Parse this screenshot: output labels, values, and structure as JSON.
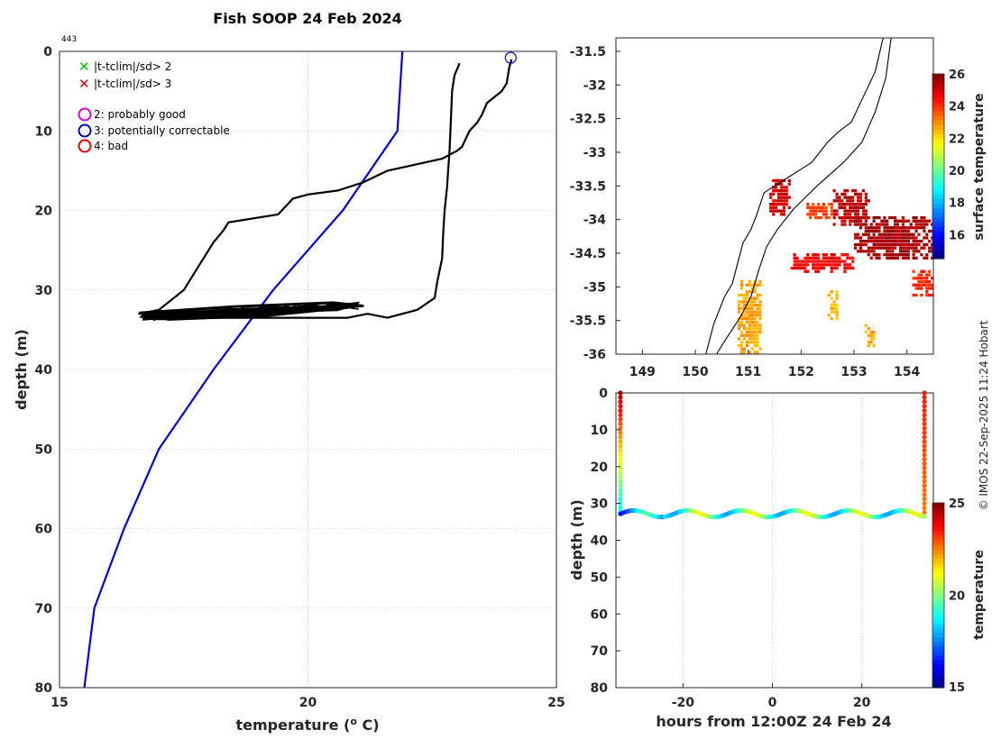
{
  "title": "Fish SOOP 24 Feb 2024",
  "profile_id": "443",
  "credit": "© IMOS 22-Sep-2025 11:24 Hobart",
  "legend": {
    "green_x": "|t-tclim|/sd> 2",
    "red_x": "|t-tclim|/sd> 3",
    "magenta_o": "2: probably good",
    "blue_o": "3: potentially correctable",
    "red_o": "4: bad"
  },
  "colors": {
    "profile": "#000000",
    "climatology": "#0000dd",
    "grid": "#b0b0b0",
    "green": "#00cc00",
    "red": "#ee0000",
    "magenta": "#dd00dd",
    "blue": "#0000cc"
  },
  "chart_data": [
    {
      "type": "line",
      "name": "profile",
      "title": "Fish SOOP 24 Feb 2024",
      "xlabel": "temperature (° C)",
      "ylabel": "depth (m)",
      "xlim": [
        15,
        25
      ],
      "ylim": [
        0,
        80
      ],
      "y_inverted": true,
      "xticks": [
        15,
        20,
        25
      ],
      "yticks": [
        0,
        10,
        20,
        30,
        40,
        50,
        60,
        70,
        80
      ],
      "grid": true,
      "series": [
        {
          "name": "climatology",
          "color": "#0000dd",
          "points": [
            [
              21.9,
              0
            ],
            [
              21.8,
              10
            ],
            [
              20.7,
              20
            ],
            [
              19.3,
              30
            ],
            [
              18.1,
              40
            ],
            [
              17.0,
              50
            ],
            [
              16.3,
              60
            ],
            [
              15.7,
              70
            ],
            [
              15.5,
              80
            ]
          ]
        },
        {
          "name": "profile",
          "color": "#000000",
          "points": [
            [
              23.05,
              1.5
            ],
            [
              22.95,
              3
            ],
            [
              22.9,
              5
            ],
            [
              22.88,
              8
            ],
            [
              22.85,
              12.5
            ],
            [
              22.82,
              15
            ],
            [
              22.8,
              17
            ],
            [
              22.75,
              20
            ],
            [
              22.72,
              23
            ],
            [
              22.7,
              26
            ],
            [
              22.6,
              29
            ],
            [
              22.55,
              31
            ],
            [
              22.2,
              32.5
            ],
            [
              21.6,
              33.5
            ],
            [
              21.2,
              33
            ],
            [
              20.8,
              33.5
            ],
            [
              17.5,
              33.5
            ],
            [
              16.6,
              33
            ],
            [
              17.0,
              32.5
            ],
            [
              17.5,
              30
            ],
            [
              17.7,
              28
            ],
            [
              17.85,
              26.5
            ],
            [
              18.1,
              24
            ],
            [
              18.3,
              22.5
            ],
            [
              18.4,
              21.5
            ],
            [
              18.9,
              21
            ],
            [
              19.4,
              20.5
            ],
            [
              19.7,
              18.5
            ],
            [
              20.0,
              18
            ],
            [
              20.6,
              17.5
            ],
            [
              21.1,
              16.5
            ],
            [
              21.6,
              15
            ],
            [
              22.7,
              13.5
            ],
            [
              23.0,
              12.5
            ],
            [
              23.1,
              12
            ],
            [
              23.25,
              10
            ],
            [
              23.4,
              9
            ],
            [
              23.5,
              8
            ],
            [
              23.6,
              6.5
            ],
            [
              23.9,
              5
            ],
            [
              24.0,
              4
            ],
            [
              24.05,
              2
            ],
            [
              24.1,
              1
            ]
          ]
        },
        {
          "name": "profile-loops",
          "color": "#000000",
          "points": [
            [
              16.6,
              32.9
            ],
            [
              18.5,
              32.1
            ],
            [
              20.5,
              31.6
            ],
            [
              21.1,
              32.0
            ],
            [
              19.5,
              32.9
            ],
            [
              17.5,
              33.6
            ],
            [
              16.8,
              33.1
            ],
            [
              18.8,
              32.4
            ],
            [
              20.8,
              32.2
            ],
            [
              19.2,
              33.2
            ],
            [
              17.2,
              33.7
            ],
            [
              16.7,
              33.2
            ],
            [
              18.6,
              32.8
            ],
            [
              20.6,
              32.5
            ]
          ]
        }
      ],
      "flags": [
        {
          "flag": "3: potentially correctable",
          "x": 24.08,
          "y": 0.8
        }
      ]
    },
    {
      "type": "heatmap",
      "name": "map",
      "xlim": [
        148.5,
        154.5
      ],
      "ylim": [
        -36,
        -31.3
      ],
      "xticks": [
        149,
        150,
        151,
        152,
        153,
        154
      ],
      "yticks": [
        -31.5,
        -32,
        -32.5,
        -33,
        -33.5,
        -34,
        -34.5,
        -35,
        -35.5,
        -36
      ],
      "colorbar": {
        "label": "surface temperature",
        "range": [
          14.5,
          26
        ],
        "ticks": [
          16,
          18,
          20,
          22,
          24,
          26
        ]
      },
      "coastline": [
        [
          153.55,
          -31.3
        ],
        [
          153.4,
          -31.8
        ],
        [
          153.1,
          -32.3
        ],
        [
          152.95,
          -32.55
        ],
        [
          152.7,
          -32.7
        ],
        [
          152.5,
          -32.85
        ],
        [
          152.2,
          -33.15
        ],
        [
          151.8,
          -33.35
        ],
        [
          151.6,
          -33.45
        ],
        [
          151.3,
          -33.6
        ],
        [
          151.15,
          -33.95
        ],
        [
          151.05,
          -34.15
        ],
        [
          150.9,
          -34.35
        ],
        [
          150.8,
          -34.65
        ],
        [
          150.7,
          -34.95
        ],
        [
          150.55,
          -35.15
        ],
        [
          150.35,
          -35.55
        ],
        [
          150.2,
          -36.0
        ]
      ],
      "isobath": [
        [
          153.7,
          -31.3
        ],
        [
          153.6,
          -31.9
        ],
        [
          153.4,
          -32.4
        ],
        [
          153.15,
          -32.85
        ],
        [
          152.8,
          -33.15
        ],
        [
          152.3,
          -33.5
        ],
        [
          151.85,
          -33.85
        ],
        [
          151.55,
          -34.15
        ],
        [
          151.35,
          -34.4
        ],
        [
          151.2,
          -34.75
        ],
        [
          151.05,
          -35.15
        ],
        [
          150.85,
          -35.45
        ],
        [
          150.6,
          -35.75
        ],
        [
          150.4,
          -36.0
        ]
      ],
      "sst_patches": [
        {
          "lon": [
            152.6,
            153.3
          ],
          "lat": [
            -34.1,
            -33.6
          ],
          "temp": 25.3
        },
        {
          "lon": [
            153.0,
            154.5
          ],
          "lat": [
            -34.6,
            -34.0
          ],
          "temp": 25.5
        },
        {
          "lon": [
            151.4,
            151.8
          ],
          "lat": [
            -33.95,
            -33.45
          ],
          "temp": 25.0
        },
        {
          "lon": [
            152.1,
            152.6
          ],
          "lat": [
            -34.0,
            -33.8
          ],
          "temp": 23.8
        },
        {
          "lon": [
            151.8,
            153.0
          ],
          "lat": [
            -34.8,
            -34.55
          ],
          "temp": 24.6
        },
        {
          "lon": [
            154.1,
            154.5
          ],
          "lat": [
            -35.15,
            -34.8
          ],
          "temp": 24.1
        },
        {
          "lon": [
            150.8,
            151.25
          ],
          "lat": [
            -36.0,
            -34.95
          ],
          "temp": 22.7
        },
        {
          "lon": [
            152.5,
            152.7
          ],
          "lat": [
            -35.5,
            -35.1
          ],
          "temp": 22.5
        },
        {
          "lon": [
            153.2,
            153.4
          ],
          "lat": [
            -35.9,
            -35.6
          ],
          "temp": 22.6
        }
      ]
    },
    {
      "type": "scatter",
      "name": "time-depth",
      "xlabel": "hours from 12:00Z 24 Feb 24",
      "ylabel": "depth (m)",
      "xlim": [
        -35,
        36
      ],
      "ylim": [
        0,
        80
      ],
      "y_inverted": true,
      "xticks": [
        -20,
        0,
        20
      ],
      "yticks": [
        0,
        10,
        20,
        30,
        40,
        50,
        60,
        70,
        80
      ],
      "colorbar": {
        "label": "temperature",
        "range": [
          15,
          25
        ],
        "ticks": [
          15,
          20,
          25
        ]
      },
      "series": [
        {
          "name": "descent-start",
          "x": -34,
          "depth_range": [
            0,
            32.5
          ],
          "temp_range": [
            24.5,
            18.5
          ]
        },
        {
          "name": "tow",
          "x_range": [
            -34,
            34
          ],
          "depth_center": 32.8,
          "depth_amplitude": 0.9,
          "period_hours": 12,
          "temp_mean": 19.5
        },
        {
          "name": "ascent-end",
          "x": 34,
          "depth_range": [
            0,
            32.5
          ],
          "temp_range": [
            23.5,
            22.5
          ]
        }
      ]
    }
  ]
}
